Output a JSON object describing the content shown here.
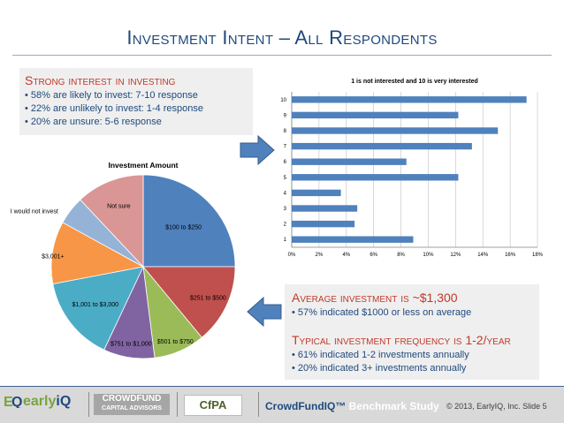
{
  "title": "Investment Intent – All Respondents",
  "box_a": {
    "heading": "Strong interest in investing",
    "bullets": [
      "• 58% are likely to invest: 7-10 response",
      "• 22% are unlikely to invest: 1-4 response",
      "• 20% are unsure: 5-6 response"
    ]
  },
  "box_b": {
    "heading1": "Average investment is ~$1,300",
    "bullet1": "• 57% indicated $1000 or less on average",
    "heading2": "Typical investment frequency is 1-2/year",
    "bullets2": [
      "• 61% indicated 1-2 investments annually",
      "• 20% indicated 3+ investments annually"
    ]
  },
  "colors": {
    "accent": "#1f497d",
    "heading_red": "#c0392b",
    "arrow": "#4f81bd"
  },
  "chart_data": [
    {
      "type": "pie",
      "title": "Investment Amount",
      "slices": [
        {
          "label": "$100 to $250",
          "value": 25,
          "color": "#4f81bd"
        },
        {
          "label": "$251 to $500",
          "value": 14,
          "color": "#c0504d"
        },
        {
          "label": "$501 to $750",
          "value": 9,
          "color": "#9bbb59"
        },
        {
          "label": "$751 to $1,000",
          "value": 9,
          "color": "#8064a2"
        },
        {
          "label": "$1,001 to $3,000",
          "value": 15,
          "color": "#4bacc6"
        },
        {
          "label": "$3,001+",
          "value": 11,
          "color": "#f79646"
        },
        {
          "label": "I would not invest",
          "value": 5,
          "color": "#95b3d7"
        },
        {
          "label": "Not sure",
          "value": 12,
          "color": "#d99694"
        }
      ]
    },
    {
      "type": "bar",
      "orientation": "horizontal",
      "title": "1 is not interested and 10 is very interested",
      "categories": [
        "1",
        "2",
        "3",
        "4",
        "5",
        "6",
        "7",
        "8",
        "9",
        "10"
      ],
      "values": [
        8.9,
        4.6,
        4.8,
        3.6,
        12.2,
        8.4,
        13.2,
        15.1,
        12.2,
        17.2
      ],
      "xlim": [
        0,
        18
      ],
      "x_ticks": [
        "0%",
        "2%",
        "4%",
        "6%",
        "8%",
        "10%",
        "12%",
        "14%",
        "16%",
        "18%"
      ],
      "grid": true,
      "color": "#4f81bd"
    }
  ],
  "footer": {
    "logo_early": "early",
    "logo_iq": "iQ",
    "logo_crowdfund": "CROWDFUND",
    "logo_capital": "CAPITAL ADVISORS",
    "logo_cfpa": "CfPA",
    "study_brand": "CrowdFundIQ™",
    "study_rest": " Benchmark Study",
    "copyright": "© 2013, EarlyIQ, Inc.  Slide 5"
  }
}
